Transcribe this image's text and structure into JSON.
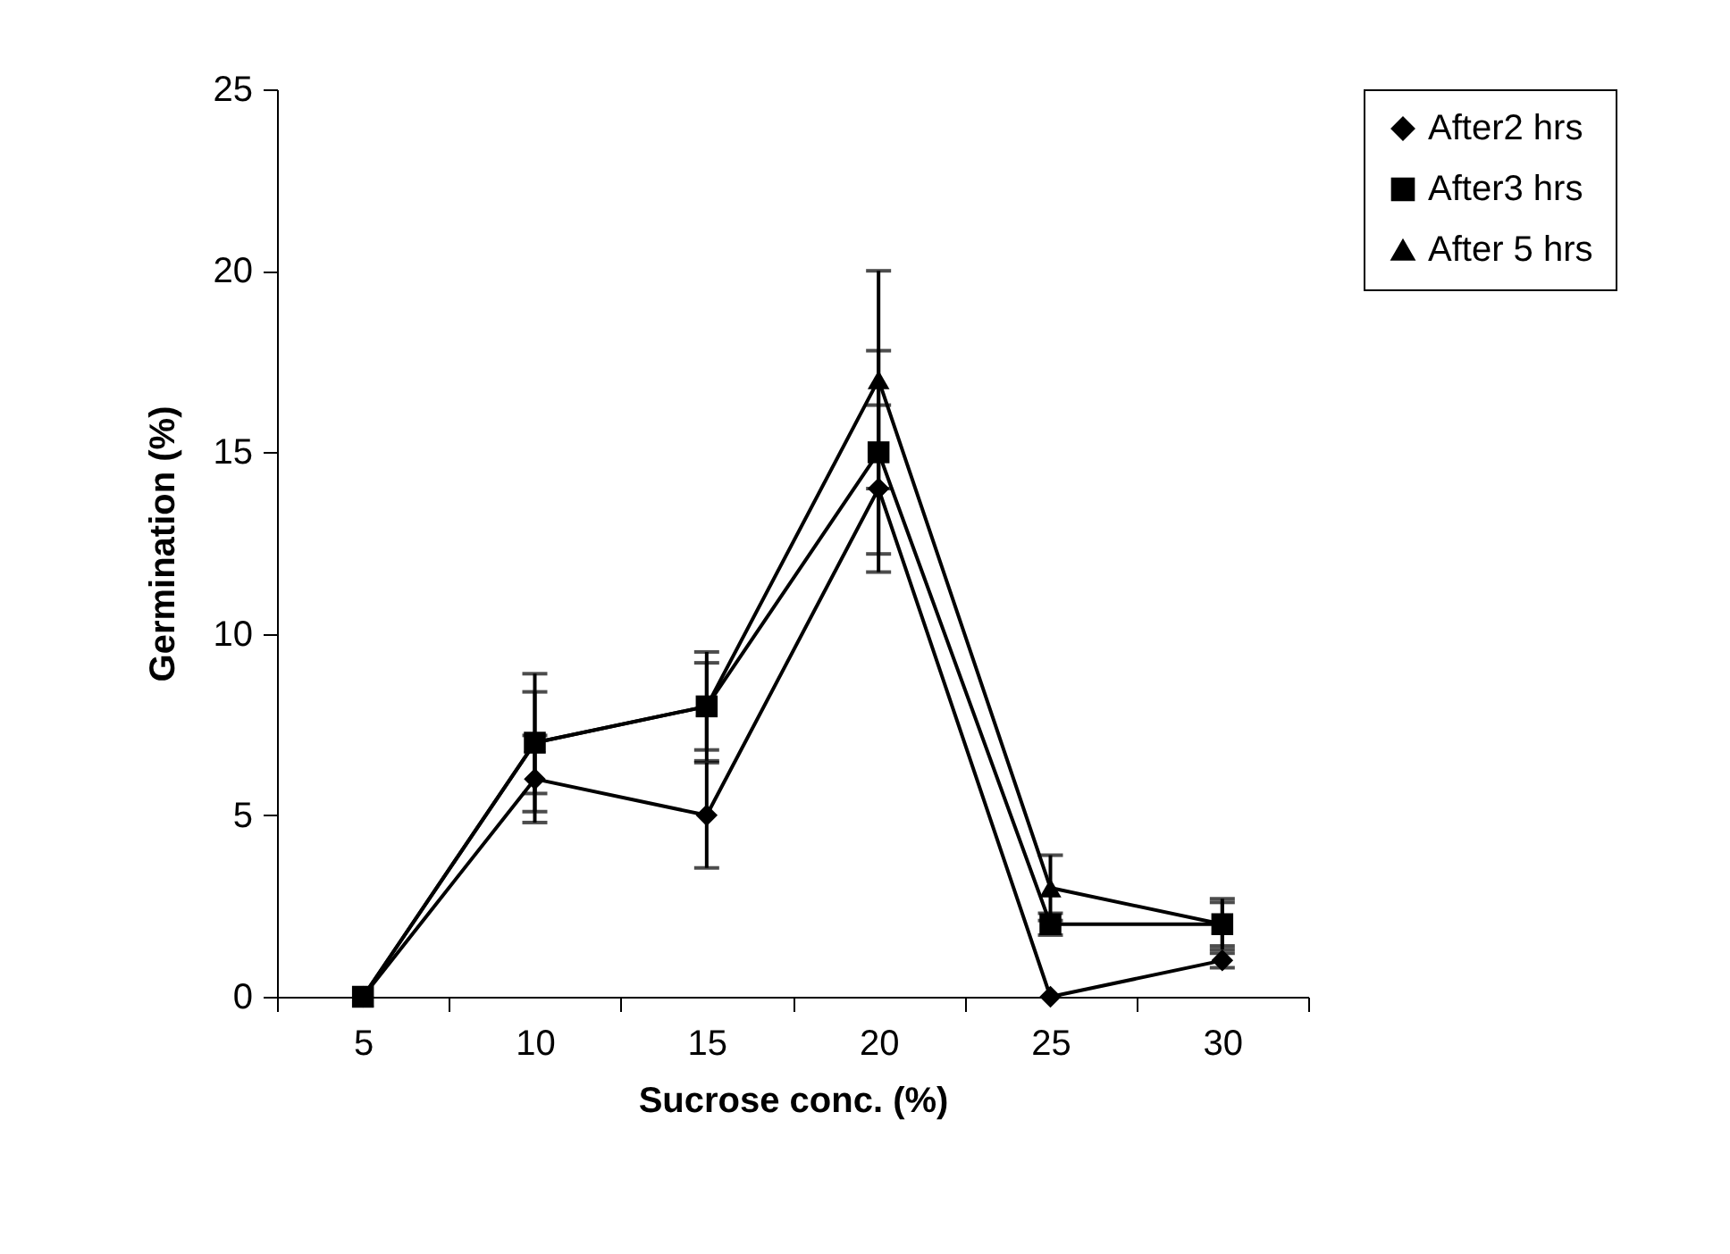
{
  "chart_data": {
    "type": "line",
    "xlabel": "Sucrose conc. (%)",
    "ylabel": "Germination (%)",
    "categories": [
      "5",
      "10",
      "15",
      "20",
      "25",
      "30"
    ],
    "series": [
      {
        "name": "After2 hrs",
        "color": "#000000",
        "marker": "diamond",
        "values": [
          0,
          6,
          5,
          14,
          0,
          1
        ],
        "errors": [
          null,
          1.2,
          1.45,
          2.3,
          null,
          0.2
        ]
      },
      {
        "name": "After3 hrs",
        "color": "#000000",
        "marker": "square",
        "values": [
          0,
          7,
          8,
          15,
          2,
          2
        ],
        "errors": [
          null,
          1.9,
          1.5,
          2.8,
          0.3,
          0.7
        ]
      },
      {
        "name": "After 5 hrs",
        "color": "#000000",
        "marker": "triangle",
        "values": [
          0,
          7,
          8,
          17,
          3,
          2
        ],
        "errors": [
          null,
          1.4,
          1.2,
          3,
          0.9,
          0.6
        ]
      }
    ],
    "ylim": [
      0,
      25
    ],
    "yticks": [
      0,
      5,
      10,
      15,
      20,
      25
    ],
    "legend": "top right",
    "line_style": "solid"
  }
}
